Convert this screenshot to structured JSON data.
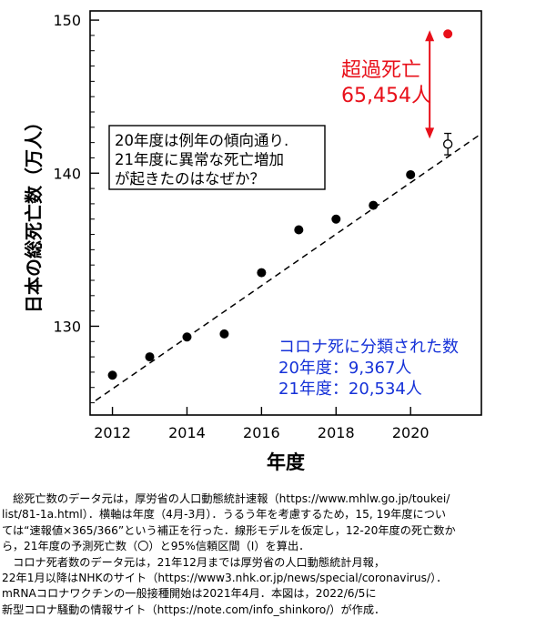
{
  "chart_data": {
    "type": "scatter",
    "title": "",
    "xlabel": "年度",
    "ylabel": "日本の総死亡数（万人）",
    "xlim": [
      2011.4,
      2021.9
    ],
    "ylim": [
      124.2,
      150.6
    ],
    "x_ticks": [
      2012,
      2014,
      2016,
      2018,
      2020
    ],
    "y_ticks": [
      130,
      140,
      150
    ],
    "grid": false,
    "series": [
      {
        "marker": "filled-circle",
        "color": "#000000",
        "x": [
          2012,
          2013,
          2014,
          2015,
          2016,
          2017,
          2018,
          2019,
          2020
        ],
        "y": [
          126.8,
          128.0,
          129.3,
          129.5,
          133.5,
          136.3,
          137.0,
          137.9,
          139.9
        ]
      }
    ],
    "predicted": {
      "x": 2021,
      "y": 141.9,
      "ci": [
        141.2,
        142.6
      ],
      "marker": "open-circle",
      "color": "#000000"
    },
    "actual_2021": {
      "x": 2021,
      "y": 149.1,
      "color": "#e8101a"
    },
    "trend_line": {
      "style": "dashed",
      "color": "#000000",
      "x": [
        2011.55,
        2021.85
      ],
      "y": [
        125.15,
        142.5
      ]
    },
    "annotations": {
      "excess_title": "超過死亡",
      "excess_value": "65,454人",
      "box_lines": [
        "20年度は例年の傾向通り.",
        "21年度に異常な死亡増加",
        "が起きたのはなぜか？"
      ],
      "corona_lines": [
        "コロナ死に分類された数",
        "20年度：9,367人",
        "21年度：20,534人"
      ]
    }
  },
  "colors": {
    "red": "#e8101a",
    "blue": "#1632d8",
    "black": "#000000"
  },
  "caption": [
    "　総死亡数のデータ元は，厚労省の人口動態統計速報（https://www.mhlw.go.jp/toukei/",
    "list/81-1a.html）．横軸は年度（4月-3月）．うるう年を考慮するため，15, 19年度につい",
    "ては“速報値×365/366”という補正を行った．線形モデルを仮定し，12-20年度の死亡数か",
    "ら，21年度の予測死亡数（〇）と95%信頼区間（I）を算出．",
    "　コロナ死者数のデータ元は，21年12月までは厚労省の人口動態統計月報，",
    "22年1月以降はNHKのサイト（https://www3.nhk.or.jp/news/special/coronavirus/）．",
    "mRNAコロナワクチンの一般接種開始は2021年4月．本図は，2022/6/5に",
    "新型コロナ騒動の情報サイト（https://note.com/info_shinkoro/）が作成．"
  ]
}
